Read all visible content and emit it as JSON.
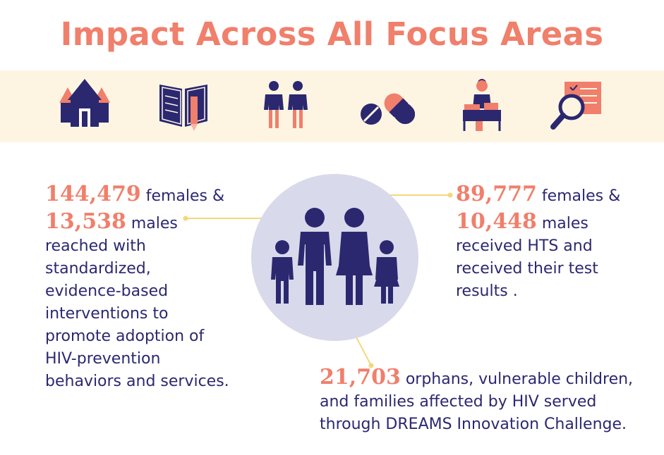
{
  "title": "Impact Across All Focus Areas",
  "icons": [
    "house-icon",
    "book-pencil-icon",
    "two-children-icon",
    "pills-icon",
    "teacher-desk-icon",
    "magnifier-document-icon"
  ],
  "colors": {
    "accent": "#f07f6b",
    "navy": "#2b2870",
    "band": "#fdf5e2",
    "circle": "#d8d9ea",
    "connector": "#f5d77a"
  },
  "stats": {
    "left": {
      "females_number": "144,479",
      "females_label": " females &",
      "males_number": "13,538",
      "males_label": " males",
      "lines": [
        "reached with",
        "standardized,",
        "evidence-based",
        "interventions to",
        "promote adoption of",
        "HIV-prevention",
        "behaviors and services."
      ]
    },
    "right": {
      "females_number": "89,777",
      "females_label": " females &",
      "males_number": "10,448",
      "males_label": " males",
      "lines": [
        "received HTS and",
        "received their test",
        "results ."
      ]
    },
    "bottom": {
      "number": "21,703",
      "label": " orphans, vulnerable children,",
      "lines": [
        "and families affected by HIV served",
        "through DREAMS Innovation Challenge."
      ]
    }
  }
}
